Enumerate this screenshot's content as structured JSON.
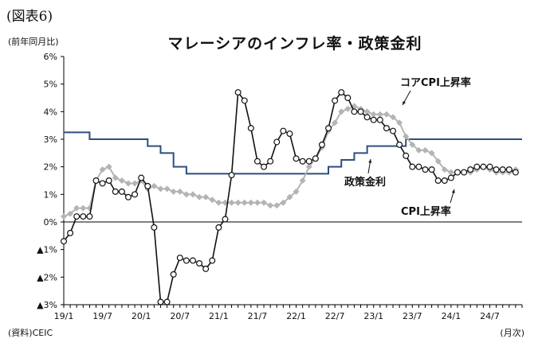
{
  "figure_label": "(図表6)",
  "unit_label": "(前年同月比)",
  "source_label": "(資料)CEIC",
  "x_unit_label": "(月次)",
  "chart_data": {
    "type": "line",
    "title": "マレーシアのインフレ率・政策金利",
    "xlabel": "",
    "ylabel": "",
    "ylim": [
      -3,
      6
    ],
    "y_ticks": [
      6,
      5,
      4,
      3,
      2,
      1,
      0,
      -1,
      -2,
      -3
    ],
    "y_tick_labels": [
      "6%",
      "5%",
      "4%",
      "3%",
      "2%",
      "1%",
      "0%",
      "▲1%",
      "▲2%",
      "▲3%"
    ],
    "x_tick_labels": [
      "19/1",
      "19/7",
      "20/1",
      "20/7",
      "21/1",
      "21/7",
      "22/1",
      "22/7",
      "23/1",
      "23/7",
      "24/1",
      "24/7"
    ],
    "x_tick_positions": [
      0,
      6,
      12,
      18,
      24,
      30,
      36,
      42,
      48,
      54,
      60,
      66
    ],
    "x_range": [
      0,
      71
    ],
    "grid": false,
    "legend": "inline labels",
    "series": [
      {
        "name": "CPI上昇率",
        "color": "#111111",
        "marker": "open-circle",
        "values": [
          -0.7,
          -0.4,
          0.2,
          0.2,
          0.2,
          1.5,
          1.4,
          1.5,
          1.1,
          1.1,
          0.9,
          1.0,
          1.6,
          1.3,
          -0.2,
          -2.9,
          -2.9,
          -1.9,
          -1.3,
          -1.4,
          -1.4,
          -1.5,
          -1.7,
          -1.4,
          -0.2,
          0.1,
          1.7,
          4.7,
          4.4,
          3.4,
          2.2,
          2.0,
          2.2,
          2.9,
          3.3,
          3.2,
          2.3,
          2.2,
          2.2,
          2.3,
          2.8,
          3.4,
          4.4,
          4.7,
          4.5,
          4.0,
          4.0,
          3.8,
          3.7,
          3.7,
          3.4,
          3.3,
          2.8,
          2.4,
          2.0,
          2.0,
          1.9,
          1.9,
          1.5,
          1.5,
          1.6,
          1.8,
          1.8,
          1.9,
          2.0,
          2.0,
          2.0,
          1.9,
          1.9,
          1.9,
          1.8
        ]
      },
      {
        "name": "コアCPI上昇率",
        "color": "#b4b4b4",
        "marker": "diamond",
        "values": [
          0.2,
          0.3,
          0.5,
          0.5,
          0.5,
          1.5,
          1.9,
          2.0,
          1.6,
          1.5,
          1.4,
          1.4,
          1.5,
          1.2,
          1.3,
          1.2,
          1.2,
          1.1,
          1.1,
          1.0,
          1.0,
          0.9,
          0.9,
          0.8,
          0.7,
          0.7,
          0.7,
          0.7,
          0.7,
          0.7,
          0.7,
          0.7,
          0.6,
          0.6,
          0.7,
          0.9,
          1.1,
          1.5,
          2.0,
          2.3,
          2.7,
          3.3,
          3.6,
          4.0,
          4.1,
          4.2,
          4.1,
          4.0,
          3.9,
          3.9,
          3.9,
          3.8,
          3.6,
          3.1,
          2.8,
          2.6,
          2.6,
          2.5,
          2.2,
          1.9,
          1.8,
          1.8,
          1.8,
          1.8,
          1.9,
          2.0,
          1.9,
          1.8,
          1.8,
          1.8,
          1.9
        ]
      },
      {
        "name": "政策金利",
        "color": "#2c4f7c",
        "marker": "none",
        "values": [
          3.25,
          3.25,
          3.25,
          3.25,
          3.0,
          3.0,
          3.0,
          3.0,
          3.0,
          3.0,
          3.0,
          3.0,
          3.0,
          2.75,
          2.75,
          2.5,
          2.5,
          2.0,
          2.0,
          1.75,
          1.75,
          1.75,
          1.75,
          1.75,
          1.75,
          1.75,
          1.75,
          1.75,
          1.75,
          1.75,
          1.75,
          1.75,
          1.75,
          1.75,
          1.75,
          1.75,
          1.75,
          1.75,
          1.75,
          1.75,
          1.75,
          2.0,
          2.0,
          2.25,
          2.25,
          2.5,
          2.5,
          2.75,
          2.75,
          2.75,
          2.75,
          2.75,
          2.75,
          3.0,
          3.0,
          3.0,
          3.0,
          3.0,
          3.0,
          3.0,
          3.0,
          3.0,
          3.0,
          3.0,
          3.0,
          3.0,
          3.0,
          3.0,
          3.0,
          3.0,
          3.0
        ]
      }
    ]
  }
}
